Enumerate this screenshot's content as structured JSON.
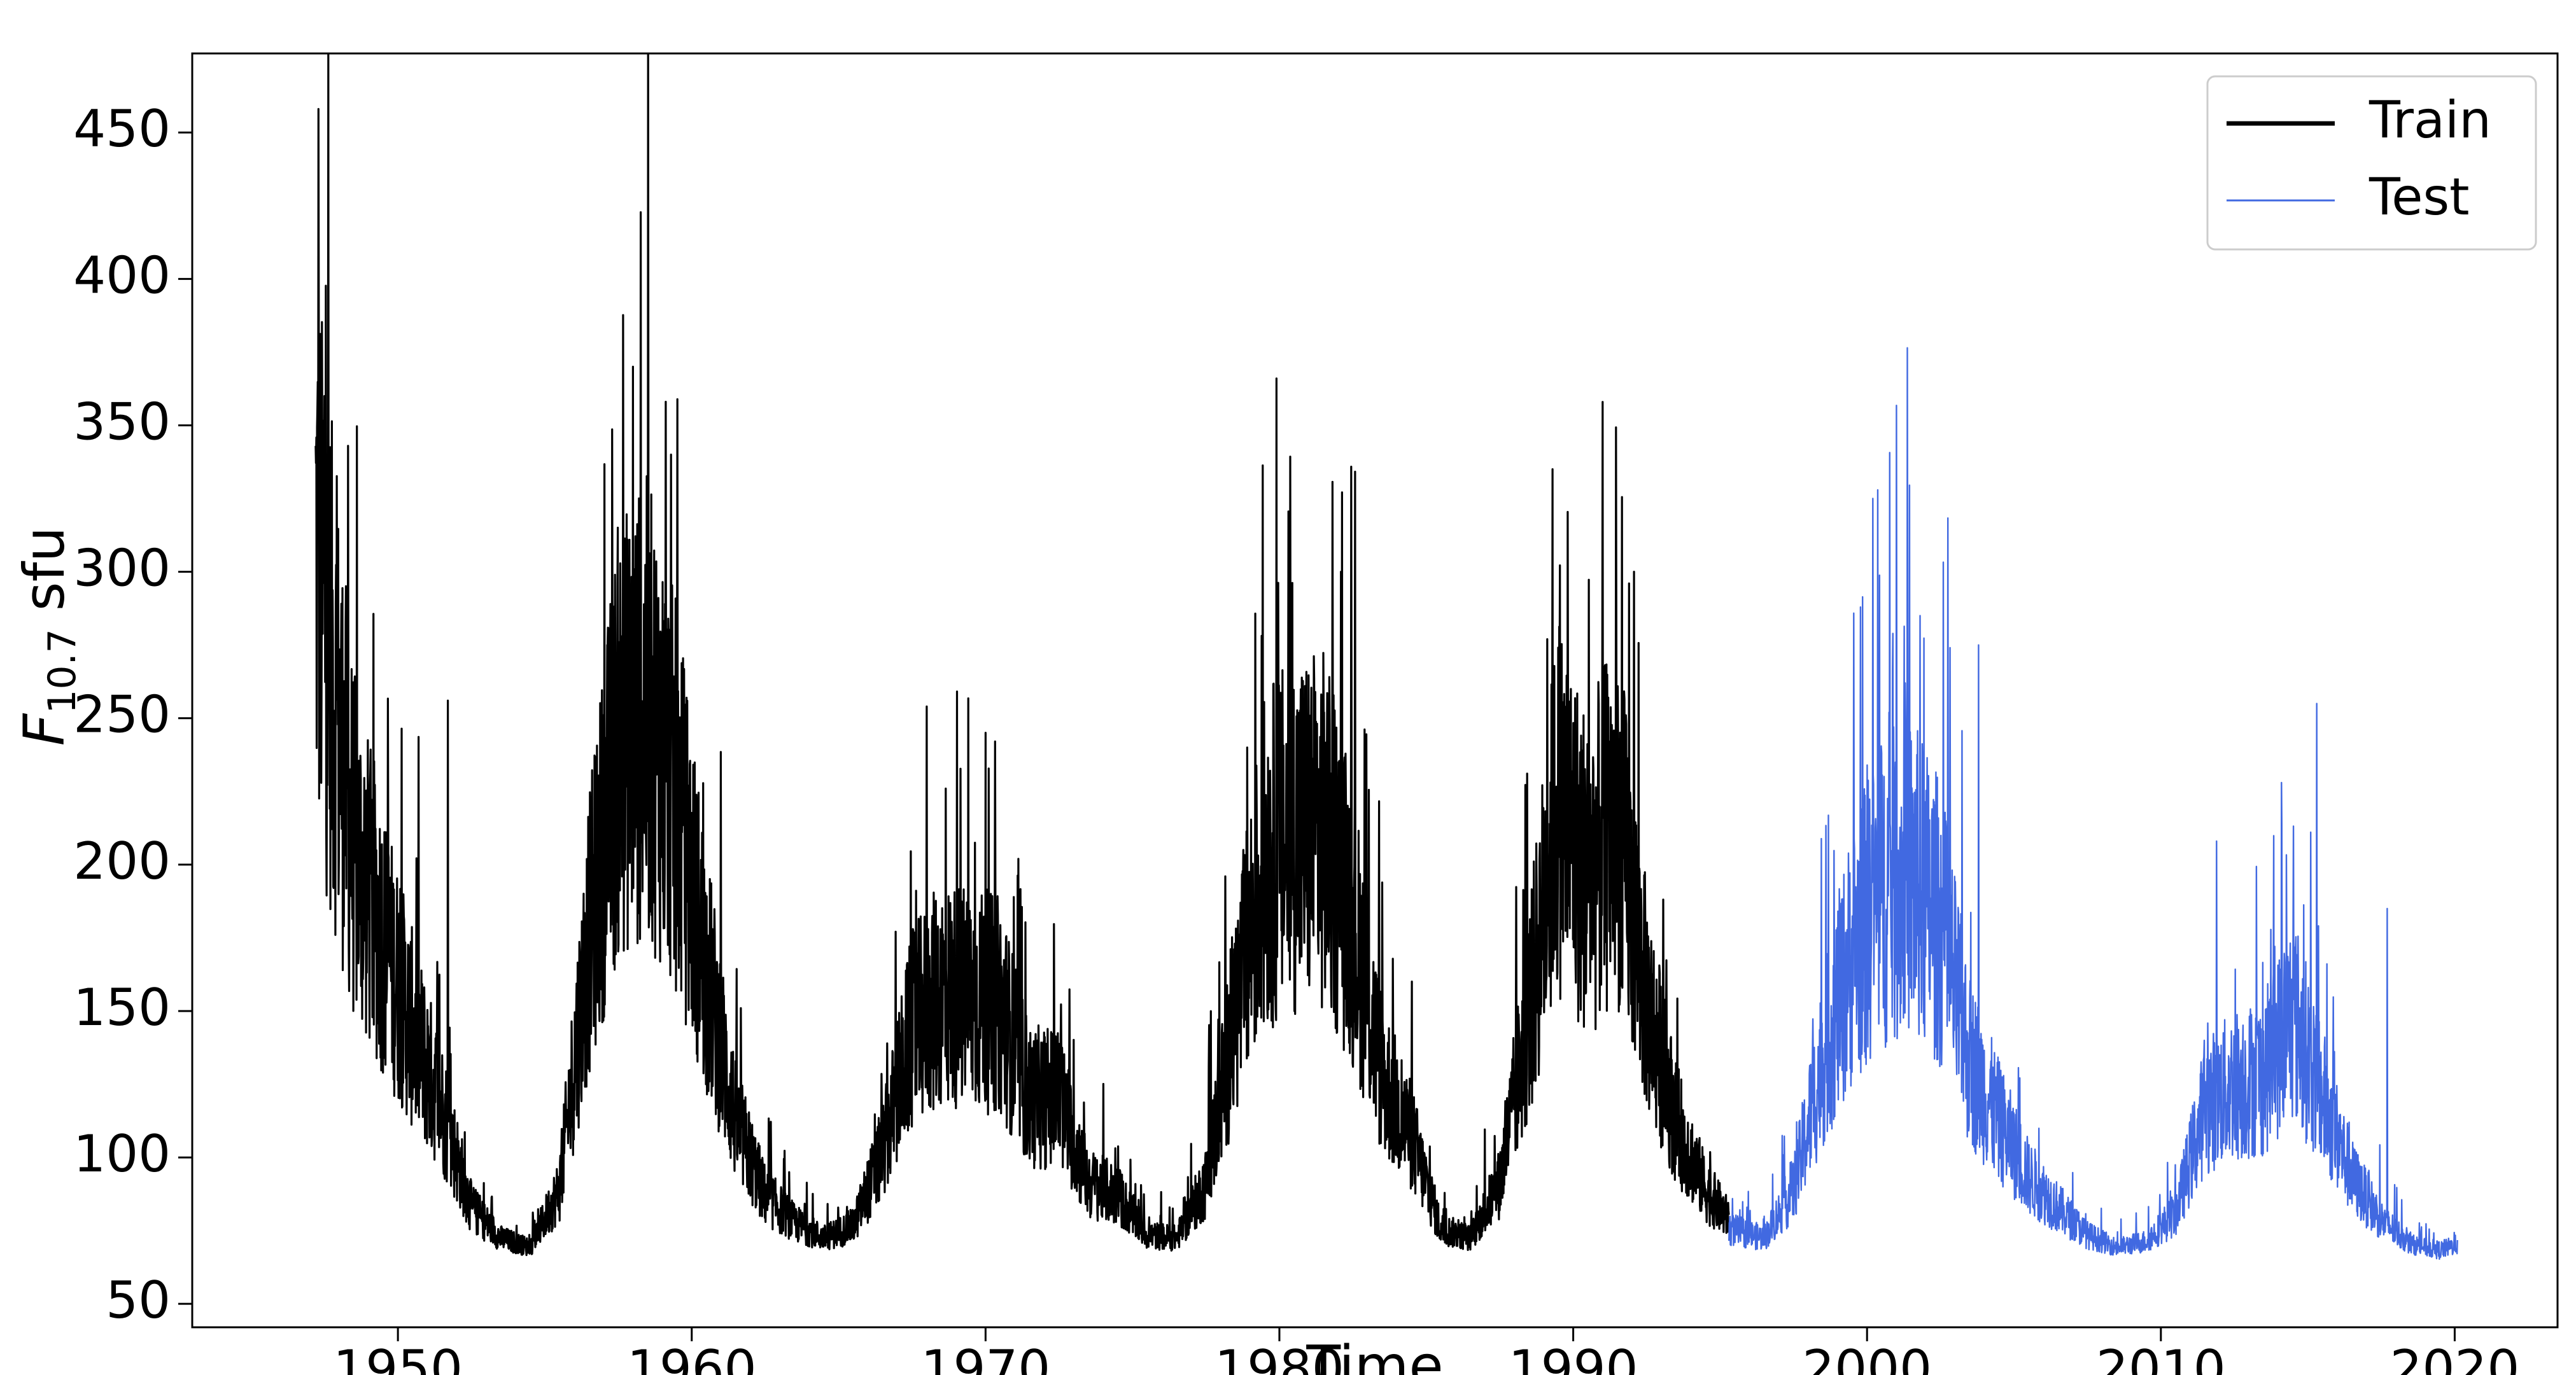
{
  "chart_data": {
    "type": "line",
    "title": "",
    "xlabel": "Time",
    "ylabel_main": "F",
    "ylabel_sub": "10.7",
    "ylabel_unit": " sfu",
    "xlim": [
      1943.0,
      2023.5
    ],
    "ylim": [
      42,
      477
    ],
    "x_ticks": [
      1950,
      1960,
      1970,
      1980,
      1990,
      2000,
      2010,
      2020
    ],
    "y_ticks": [
      50,
      100,
      150,
      200,
      250,
      300,
      350,
      400,
      450
    ],
    "grid": false,
    "legend_position": "top-right",
    "split_year": 1995.3,
    "series": [
      {
        "name": "Train",
        "color": "#000000",
        "x_range": [
          1947.2,
          1995.3
        ],
        "cycle_envelope": [
          {
            "x": 1947.2,
            "y": 300
          },
          {
            "x": 1948.5,
            "y": 200
          },
          {
            "x": 1949.5,
            "y": 170
          },
          {
            "x": 1950.5,
            "y": 140
          },
          {
            "x": 1951.5,
            "y": 115
          },
          {
            "x": 1952.5,
            "y": 82
          },
          {
            "x": 1953.5,
            "y": 72
          },
          {
            "x": 1954.5,
            "y": 69
          },
          {
            "x": 1955.5,
            "y": 88
          },
          {
            "x": 1956.5,
            "y": 170
          },
          {
            "x": 1957.5,
            "y": 235
          },
          {
            "x": 1958.5,
            "y": 245
          },
          {
            "x": 1959.5,
            "y": 215
          },
          {
            "x": 1960.5,
            "y": 160
          },
          {
            "x": 1961.5,
            "y": 110
          },
          {
            "x": 1962.5,
            "y": 86
          },
          {
            "x": 1963.5,
            "y": 77
          },
          {
            "x": 1964.5,
            "y": 72
          },
          {
            "x": 1965.5,
            "y": 76
          },
          {
            "x": 1966.5,
            "y": 100
          },
          {
            "x": 1967.5,
            "y": 140
          },
          {
            "x": 1968.5,
            "y": 152
          },
          {
            "x": 1969.5,
            "y": 150
          },
          {
            "x": 1970.5,
            "y": 148
          },
          {
            "x": 1971.5,
            "y": 118
          },
          {
            "x": 1972.5,
            "y": 118
          },
          {
            "x": 1973.5,
            "y": 90
          },
          {
            "x": 1974.5,
            "y": 86
          },
          {
            "x": 1975.5,
            "y": 73
          },
          {
            "x": 1976.5,
            "y": 72
          },
          {
            "x": 1977.5,
            "y": 90
          },
          {
            "x": 1978.5,
            "y": 145
          },
          {
            "x": 1979.5,
            "y": 195
          },
          {
            "x": 1980.5,
            "y": 205
          },
          {
            "x": 1981.5,
            "y": 205
          },
          {
            "x": 1982.5,
            "y": 175
          },
          {
            "x": 1983.5,
            "y": 125
          },
          {
            "x": 1984.5,
            "y": 105
          },
          {
            "x": 1985.5,
            "y": 75
          },
          {
            "x": 1986.5,
            "y": 72
          },
          {
            "x": 1987.5,
            "y": 90
          },
          {
            "x": 1988.5,
            "y": 145
          },
          {
            "x": 1989.5,
            "y": 215
          },
          {
            "x": 1990.5,
            "y": 190
          },
          {
            "x": 1991.5,
            "y": 210
          },
          {
            "x": 1992.5,
            "y": 150
          },
          {
            "x": 1993.5,
            "y": 110
          },
          {
            "x": 1994.5,
            "y": 88
          },
          {
            "x": 1995.3,
            "y": 78
          }
        ],
        "spikes": [
          {
            "x": 1947.3,
            "y": 458
          },
          {
            "x": 1947.5,
            "y": 360
          },
          {
            "x": 1948.3,
            "y": 343
          },
          {
            "x": 1951.7,
            "y": 256
          },
          {
            "x": 1958.0,
            "y": 370
          },
          {
            "x": 1959.3,
            "y": 340
          },
          {
            "x": 1968.0,
            "y": 254
          },
          {
            "x": 1970.0,
            "y": 245
          },
          {
            "x": 1979.9,
            "y": 366
          },
          {
            "x": 1982.1,
            "y": 300
          },
          {
            "x": 1989.3,
            "y": 335
          },
          {
            "x": 1991.0,
            "y": 358
          },
          {
            "x": 1991.9,
            "y": 296
          }
        ]
      },
      {
        "name": "Test",
        "color": "#4169E1",
        "x_range": [
          1995.3,
          2020.1
        ],
        "cycle_envelope": [
          {
            "x": 1995.3,
            "y": 75
          },
          {
            "x": 1996.5,
            "y": 72
          },
          {
            "x": 1997.5,
            "y": 88
          },
          {
            "x": 1998.5,
            "y": 130
          },
          {
            "x": 1999.5,
            "y": 165
          },
          {
            "x": 2000.5,
            "y": 185
          },
          {
            "x": 2001.5,
            "y": 190
          },
          {
            "x": 2002.5,
            "y": 175
          },
          {
            "x": 2003.5,
            "y": 130
          },
          {
            "x": 2004.5,
            "y": 110
          },
          {
            "x": 2005.5,
            "y": 92
          },
          {
            "x": 2006.5,
            "y": 82
          },
          {
            "x": 2007.5,
            "y": 73
          },
          {
            "x": 2008.5,
            "y": 69
          },
          {
            "x": 2009.5,
            "y": 71
          },
          {
            "x": 2010.5,
            "y": 80
          },
          {
            "x": 2011.5,
            "y": 115
          },
          {
            "x": 2012.5,
            "y": 122
          },
          {
            "x": 2013.5,
            "y": 125
          },
          {
            "x": 2014.5,
            "y": 145
          },
          {
            "x": 2015.5,
            "y": 118
          },
          {
            "x": 2016.5,
            "y": 92
          },
          {
            "x": 2017.5,
            "y": 78
          },
          {
            "x": 2018.5,
            "y": 70
          },
          {
            "x": 2019.5,
            "y": 68
          },
          {
            "x": 2020.1,
            "y": 70
          }
        ],
        "spikes": [
          {
            "x": 2000.0,
            "y": 234
          },
          {
            "x": 2000.2,
            "y": 325
          },
          {
            "x": 2001.3,
            "y": 262
          },
          {
            "x": 2001.8,
            "y": 285
          },
          {
            "x": 2003.8,
            "y": 275
          },
          {
            "x": 2011.9,
            "y": 208
          },
          {
            "x": 2014.1,
            "y": 228
          },
          {
            "x": 2015.3,
            "y": 255
          },
          {
            "x": 2017.7,
            "y": 185
          }
        ]
      }
    ]
  }
}
